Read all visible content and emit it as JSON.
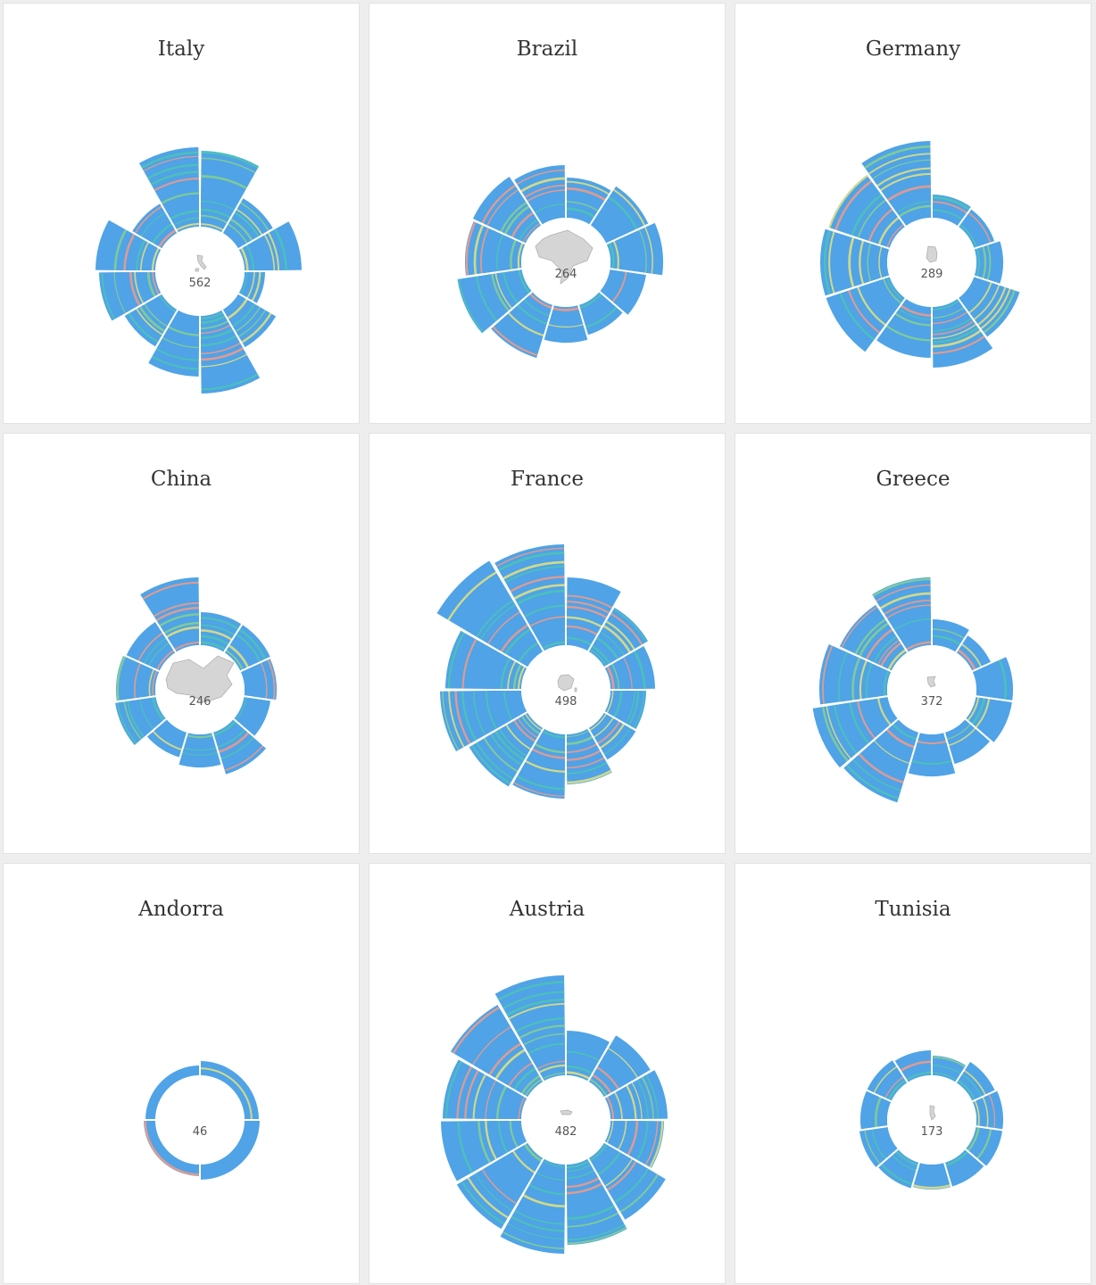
{
  "colors": {
    "blue": "#4fa3e6",
    "teal": "#4cc4b4",
    "green": "#86d18e",
    "yellow": "#e8e27a",
    "salmon": "#f59a86",
    "map_fill": "#d5d5d5"
  },
  "chart_data": [
    {
      "type": "radial-bar",
      "title": "Italy",
      "count": "562",
      "map": "italy-shape",
      "spokes": 12,
      "spoke_lengths": [
        85,
        45,
        64,
        23,
        49,
        87,
        68,
        48,
        63,
        67,
        38,
        89
      ]
    },
    {
      "type": "radial-bar",
      "title": "Brazil",
      "count": "264",
      "map": "brazil-shape",
      "spokes": 11,
      "spoke_lengths": [
        45,
        52,
        59,
        41,
        35,
        40,
        62,
        73,
        63,
        65,
        59
      ]
    },
    {
      "type": "radial-bar",
      "title": "Germany",
      "count": "289",
      "map": "germany-shape",
      "spokes": 10,
      "spoke_lengths": [
        26,
        24,
        30,
        54,
        68,
        57,
        75,
        75,
        72,
        86
      ]
    },
    {
      "type": "radial-bar",
      "title": "China",
      "count": "246",
      "map": "china-shape",
      "spokes": 11,
      "spoke_lengths": [
        37,
        37,
        36,
        30,
        49,
        37,
        29,
        46,
        44,
        41,
        76
      ]
    },
    {
      "type": "radial-bar",
      "title": "France",
      "count": "498",
      "map": "france-shape",
      "spokes": 12,
      "spoke_lengths": [
        76,
        57,
        50,
        40,
        41,
        56,
        72,
        76,
        91,
        85,
        118,
        113
      ]
    },
    {
      "type": "radial-bar",
      "title": "Greece",
      "count": "372",
      "map": "greece-shape",
      "spokes": 11,
      "spoke_lengths": [
        29,
        23,
        41,
        41,
        37,
        47,
        82,
        85,
        76,
        64,
        76
      ]
    },
    {
      "type": "radial-bar",
      "title": "Andorra",
      "count": "46",
      "map": "",
      "spokes": 4,
      "spoke_lengths": [
        16,
        17,
        13,
        11
      ]
    },
    {
      "type": "radial-bar",
      "title": "Austria",
      "count": "482",
      "map": "austria-shape",
      "spokes": 12,
      "spoke_lengths": [
        50,
        60,
        64,
        60,
        80,
        90,
        100,
        92,
        90,
        88,
        100,
        112
      ]
    },
    {
      "type": "radial-bar",
      "title": "Tunisia",
      "count": "173",
      "map": "tunisia-shape",
      "spokes": 11,
      "spoke_lengths": [
        22,
        28,
        30,
        30,
        28,
        28,
        30,
        32,
        30,
        30,
        28
      ]
    }
  ]
}
